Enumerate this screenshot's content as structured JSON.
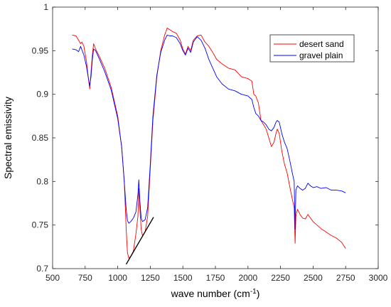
{
  "chart_data": {
    "type": "line",
    "xlabel": "wave number (cm",
    "xlabel_sup": "-1",
    "xlabel_tail": ")",
    "ylabel": "Spectral emissivity",
    "xlim": [
      500,
      3000
    ],
    "ylim": [
      0.7,
      1.0
    ],
    "xticks": [
      500,
      750,
      1000,
      1250,
      1500,
      1750,
      2000,
      2250,
      2500,
      2750,
      3000
    ],
    "yticks": [
      0.7,
      0.75,
      0.8,
      0.85,
      0.9,
      0.95,
      1
    ],
    "xtick_labels": [
      "500",
      "750",
      "1000",
      "1250",
      "1500",
      "1750",
      "2000",
      "2250",
      "2500",
      "2750",
      "3000"
    ],
    "ytick_labels": [
      "0.7",
      "0.75",
      "0.8",
      "0.85",
      "0.9",
      "0.95",
      "1"
    ],
    "grid": false,
    "legend_position": "top-right",
    "series": [
      {
        "name": "desert sand",
        "color": "#ff0000",
        "points": [
          [
            650,
            0.968
          ],
          [
            680,
            0.967
          ],
          [
            700,
            0.962
          ],
          [
            715,
            0.958
          ],
          [
            725,
            0.96
          ],
          [
            740,
            0.955
          ],
          [
            760,
            0.938
          ],
          [
            775,
            0.918
          ],
          [
            785,
            0.906
          ],
          [
            795,
            0.925
          ],
          [
            805,
            0.945
          ],
          [
            815,
            0.958
          ],
          [
            830,
            0.952
          ],
          [
            860,
            0.943
          ],
          [
            900,
            0.93
          ],
          [
            950,
            0.908
          ],
          [
            1000,
            0.875
          ],
          [
            1030,
            0.84
          ],
          [
            1050,
            0.8
          ],
          [
            1065,
            0.745
          ],
          [
            1075,
            0.718
          ],
          [
            1085,
            0.712
          ],
          [
            1100,
            0.714
          ],
          [
            1120,
            0.72
          ],
          [
            1140,
            0.74
          ],
          [
            1155,
            0.76
          ],
          [
            1162,
            0.792
          ],
          [
            1170,
            0.77
          ],
          [
            1180,
            0.745
          ],
          [
            1190,
            0.738
          ],
          [
            1210,
            0.742
          ],
          [
            1230,
            0.76
          ],
          [
            1250,
            0.815
          ],
          [
            1270,
            0.87
          ],
          [
            1300,
            0.92
          ],
          [
            1330,
            0.95
          ],
          [
            1360,
            0.968
          ],
          [
            1380,
            0.976
          ],
          [
            1400,
            0.974
          ],
          [
            1420,
            0.972
          ],
          [
            1450,
            0.97
          ],
          [
            1480,
            0.962
          ],
          [
            1500,
            0.952
          ],
          [
            1520,
            0.946
          ],
          [
            1540,
            0.955
          ],
          [
            1560,
            0.95
          ],
          [
            1580,
            0.962
          ],
          [
            1610,
            0.967
          ],
          [
            1640,
            0.968
          ],
          [
            1670,
            0.96
          ],
          [
            1700,
            0.955
          ],
          [
            1730,
            0.948
          ],
          [
            1760,
            0.94
          ],
          [
            1800,
            0.935
          ],
          [
            1850,
            0.93
          ],
          [
            1900,
            0.928
          ],
          [
            1950,
            0.92
          ],
          [
            2000,
            0.918
          ],
          [
            2030,
            0.915
          ],
          [
            2045,
            0.9
          ],
          [
            2060,
            0.898
          ],
          [
            2080,
            0.89
          ],
          [
            2100,
            0.87
          ],
          [
            2120,
            0.865
          ],
          [
            2140,
            0.86
          ],
          [
            2160,
            0.85
          ],
          [
            2180,
            0.84
          ],
          [
            2200,
            0.845
          ],
          [
            2215,
            0.855
          ],
          [
            2225,
            0.86
          ],
          [
            2240,
            0.855
          ],
          [
            2260,
            0.835
          ],
          [
            2280,
            0.82
          ],
          [
            2300,
            0.81
          ],
          [
            2320,
            0.795
          ],
          [
            2340,
            0.78
          ],
          [
            2355,
            0.77
          ],
          [
            2362,
            0.729
          ],
          [
            2368,
            0.76
          ],
          [
            2380,
            0.768
          ],
          [
            2400,
            0.762
          ],
          [
            2420,
            0.758
          ],
          [
            2440,
            0.757
          ],
          [
            2460,
            0.762
          ],
          [
            2480,
            0.758
          ],
          [
            2500,
            0.754
          ],
          [
            2530,
            0.75
          ],
          [
            2560,
            0.746
          ],
          [
            2600,
            0.742
          ],
          [
            2640,
            0.738
          ],
          [
            2680,
            0.735
          ],
          [
            2720,
            0.73
          ],
          [
            2750,
            0.723
          ]
        ]
      },
      {
        "name": "gravel plain",
        "color": "#0000ff",
        "points": [
          [
            650,
            0.952
          ],
          [
            680,
            0.951
          ],
          [
            700,
            0.949
          ],
          [
            715,
            0.955
          ],
          [
            725,
            0.951
          ],
          [
            740,
            0.945
          ],
          [
            760,
            0.932
          ],
          [
            775,
            0.918
          ],
          [
            785,
            0.91
          ],
          [
            795,
            0.92
          ],
          [
            805,
            0.94
          ],
          [
            815,
            0.952
          ],
          [
            830,
            0.95
          ],
          [
            860,
            0.94
          ],
          [
            900,
            0.926
          ],
          [
            950,
            0.905
          ],
          [
            1000,
            0.872
          ],
          [
            1030,
            0.84
          ],
          [
            1050,
            0.8
          ],
          [
            1065,
            0.768
          ],
          [
            1075,
            0.755
          ],
          [
            1085,
            0.752
          ],
          [
            1100,
            0.754
          ],
          [
            1120,
            0.758
          ],
          [
            1140,
            0.765
          ],
          [
            1155,
            0.785
          ],
          [
            1162,
            0.802
          ],
          [
            1170,
            0.778
          ],
          [
            1180,
            0.758
          ],
          [
            1190,
            0.754
          ],
          [
            1210,
            0.756
          ],
          [
            1230,
            0.77
          ],
          [
            1250,
            0.82
          ],
          [
            1270,
            0.875
          ],
          [
            1300,
            0.922
          ],
          [
            1330,
            0.948
          ],
          [
            1360,
            0.962
          ],
          [
            1380,
            0.968
          ],
          [
            1400,
            0.967
          ],
          [
            1420,
            0.967
          ],
          [
            1450,
            0.965
          ],
          [
            1480,
            0.958
          ],
          [
            1500,
            0.95
          ],
          [
            1520,
            0.945
          ],
          [
            1540,
            0.953
          ],
          [
            1560,
            0.948
          ],
          [
            1580,
            0.96
          ],
          [
            1610,
            0.966
          ],
          [
            1640,
            0.962
          ],
          [
            1670,
            0.953
          ],
          [
            1700,
            0.94
          ],
          [
            1730,
            0.93
          ],
          [
            1760,
            0.92
          ],
          [
            1800,
            0.912
          ],
          [
            1850,
            0.906
          ],
          [
            1900,
            0.904
          ],
          [
            1950,
            0.9
          ],
          [
            2000,
            0.898
          ],
          [
            2030,
            0.894
          ],
          [
            2045,
            0.885
          ],
          [
            2060,
            0.878
          ],
          [
            2080,
            0.875
          ],
          [
            2100,
            0.87
          ],
          [
            2120,
            0.868
          ],
          [
            2140,
            0.865
          ],
          [
            2160,
            0.86
          ],
          [
            2180,
            0.858
          ],
          [
            2200,
            0.862
          ],
          [
            2215,
            0.868
          ],
          [
            2225,
            0.87
          ],
          [
            2240,
            0.868
          ],
          [
            2260,
            0.855
          ],
          [
            2280,
            0.845
          ],
          [
            2300,
            0.838
          ],
          [
            2320,
            0.825
          ],
          [
            2340,
            0.81
          ],
          [
            2355,
            0.8
          ],
          [
            2362,
            0.745
          ],
          [
            2368,
            0.79
          ],
          [
            2380,
            0.795
          ],
          [
            2400,
            0.792
          ],
          [
            2420,
            0.79
          ],
          [
            2440,
            0.792
          ],
          [
            2460,
            0.798
          ],
          [
            2480,
            0.795
          ],
          [
            2500,
            0.793
          ],
          [
            2530,
            0.794
          ],
          [
            2560,
            0.792
          ],
          [
            2600,
            0.793
          ],
          [
            2640,
            0.79
          ],
          [
            2680,
            0.79
          ],
          [
            2720,
            0.789
          ],
          [
            2750,
            0.787
          ]
        ]
      }
    ],
    "annotation_line": {
      "color": "#000000",
      "points": [
        [
          1065,
          0.705
        ],
        [
          1275,
          0.759
        ]
      ]
    }
  }
}
